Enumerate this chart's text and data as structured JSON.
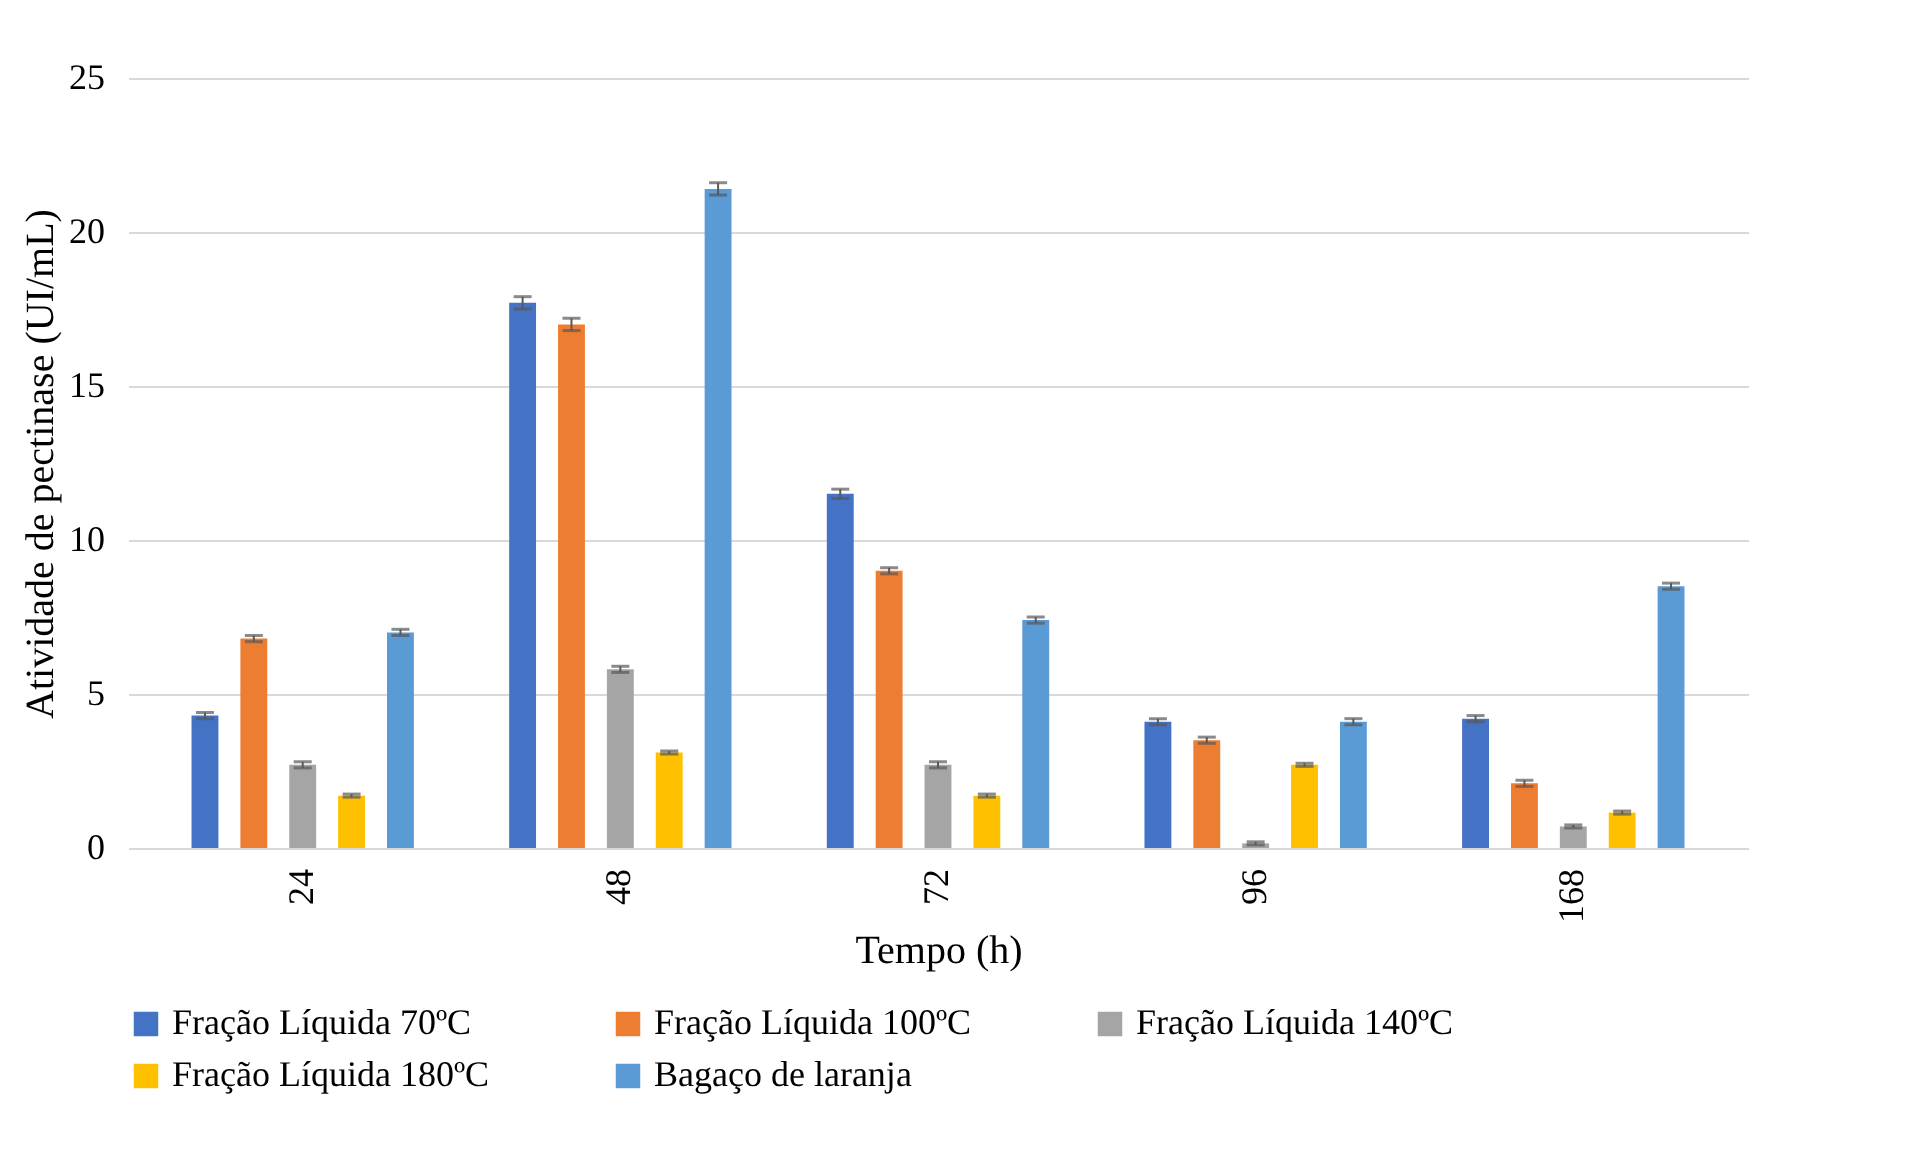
{
  "chart_data": {
    "type": "bar",
    "xlabel": "Tempo (h)",
    "ylabel": "Atividade de pectinase (UI/mL)",
    "categories": [
      "24",
      "48",
      "72",
      "96",
      "168"
    ],
    "series": [
      {
        "name": "Fração Líquida 70ºC",
        "color": "#4472c4",
        "values": [
          4.3,
          17.7,
          11.5,
          4.1,
          4.2
        ],
        "errors": [
          0.1,
          0.2,
          0.15,
          0.1,
          0.1
        ]
      },
      {
        "name": "Fração Líquida 100ºC",
        "color": "#ed7d31",
        "values": [
          6.8,
          17.0,
          9.0,
          3.5,
          2.1
        ],
        "errors": [
          0.1,
          0.2,
          0.1,
          0.1,
          0.1
        ]
      },
      {
        "name": "Fração Líquida 140ºC",
        "color": "#a5a5a5",
        "values": [
          2.7,
          5.8,
          2.7,
          0.15,
          0.7
        ],
        "errors": [
          0.1,
          0.1,
          0.1,
          0.05,
          0.05
        ]
      },
      {
        "name": "Fração Líquida 180ºC",
        "color": "#ffc000",
        "values": [
          1.7,
          3.1,
          1.7,
          2.7,
          1.15
        ],
        "errors": [
          0.05,
          0.05,
          0.05,
          0.05,
          0.05
        ]
      },
      {
        "name": "Bagaço de laranja",
        "color": "#5b9bd5",
        "values": [
          7.0,
          21.4,
          7.4,
          4.1,
          8.5
        ],
        "errors": [
          0.1,
          0.2,
          0.1,
          0.1,
          0.1
        ]
      }
    ],
    "ylim": [
      0,
      25
    ],
    "yticks": [
      0,
      5,
      10,
      15,
      20,
      25
    ],
    "grid": "y",
    "legend": "bottom"
  }
}
